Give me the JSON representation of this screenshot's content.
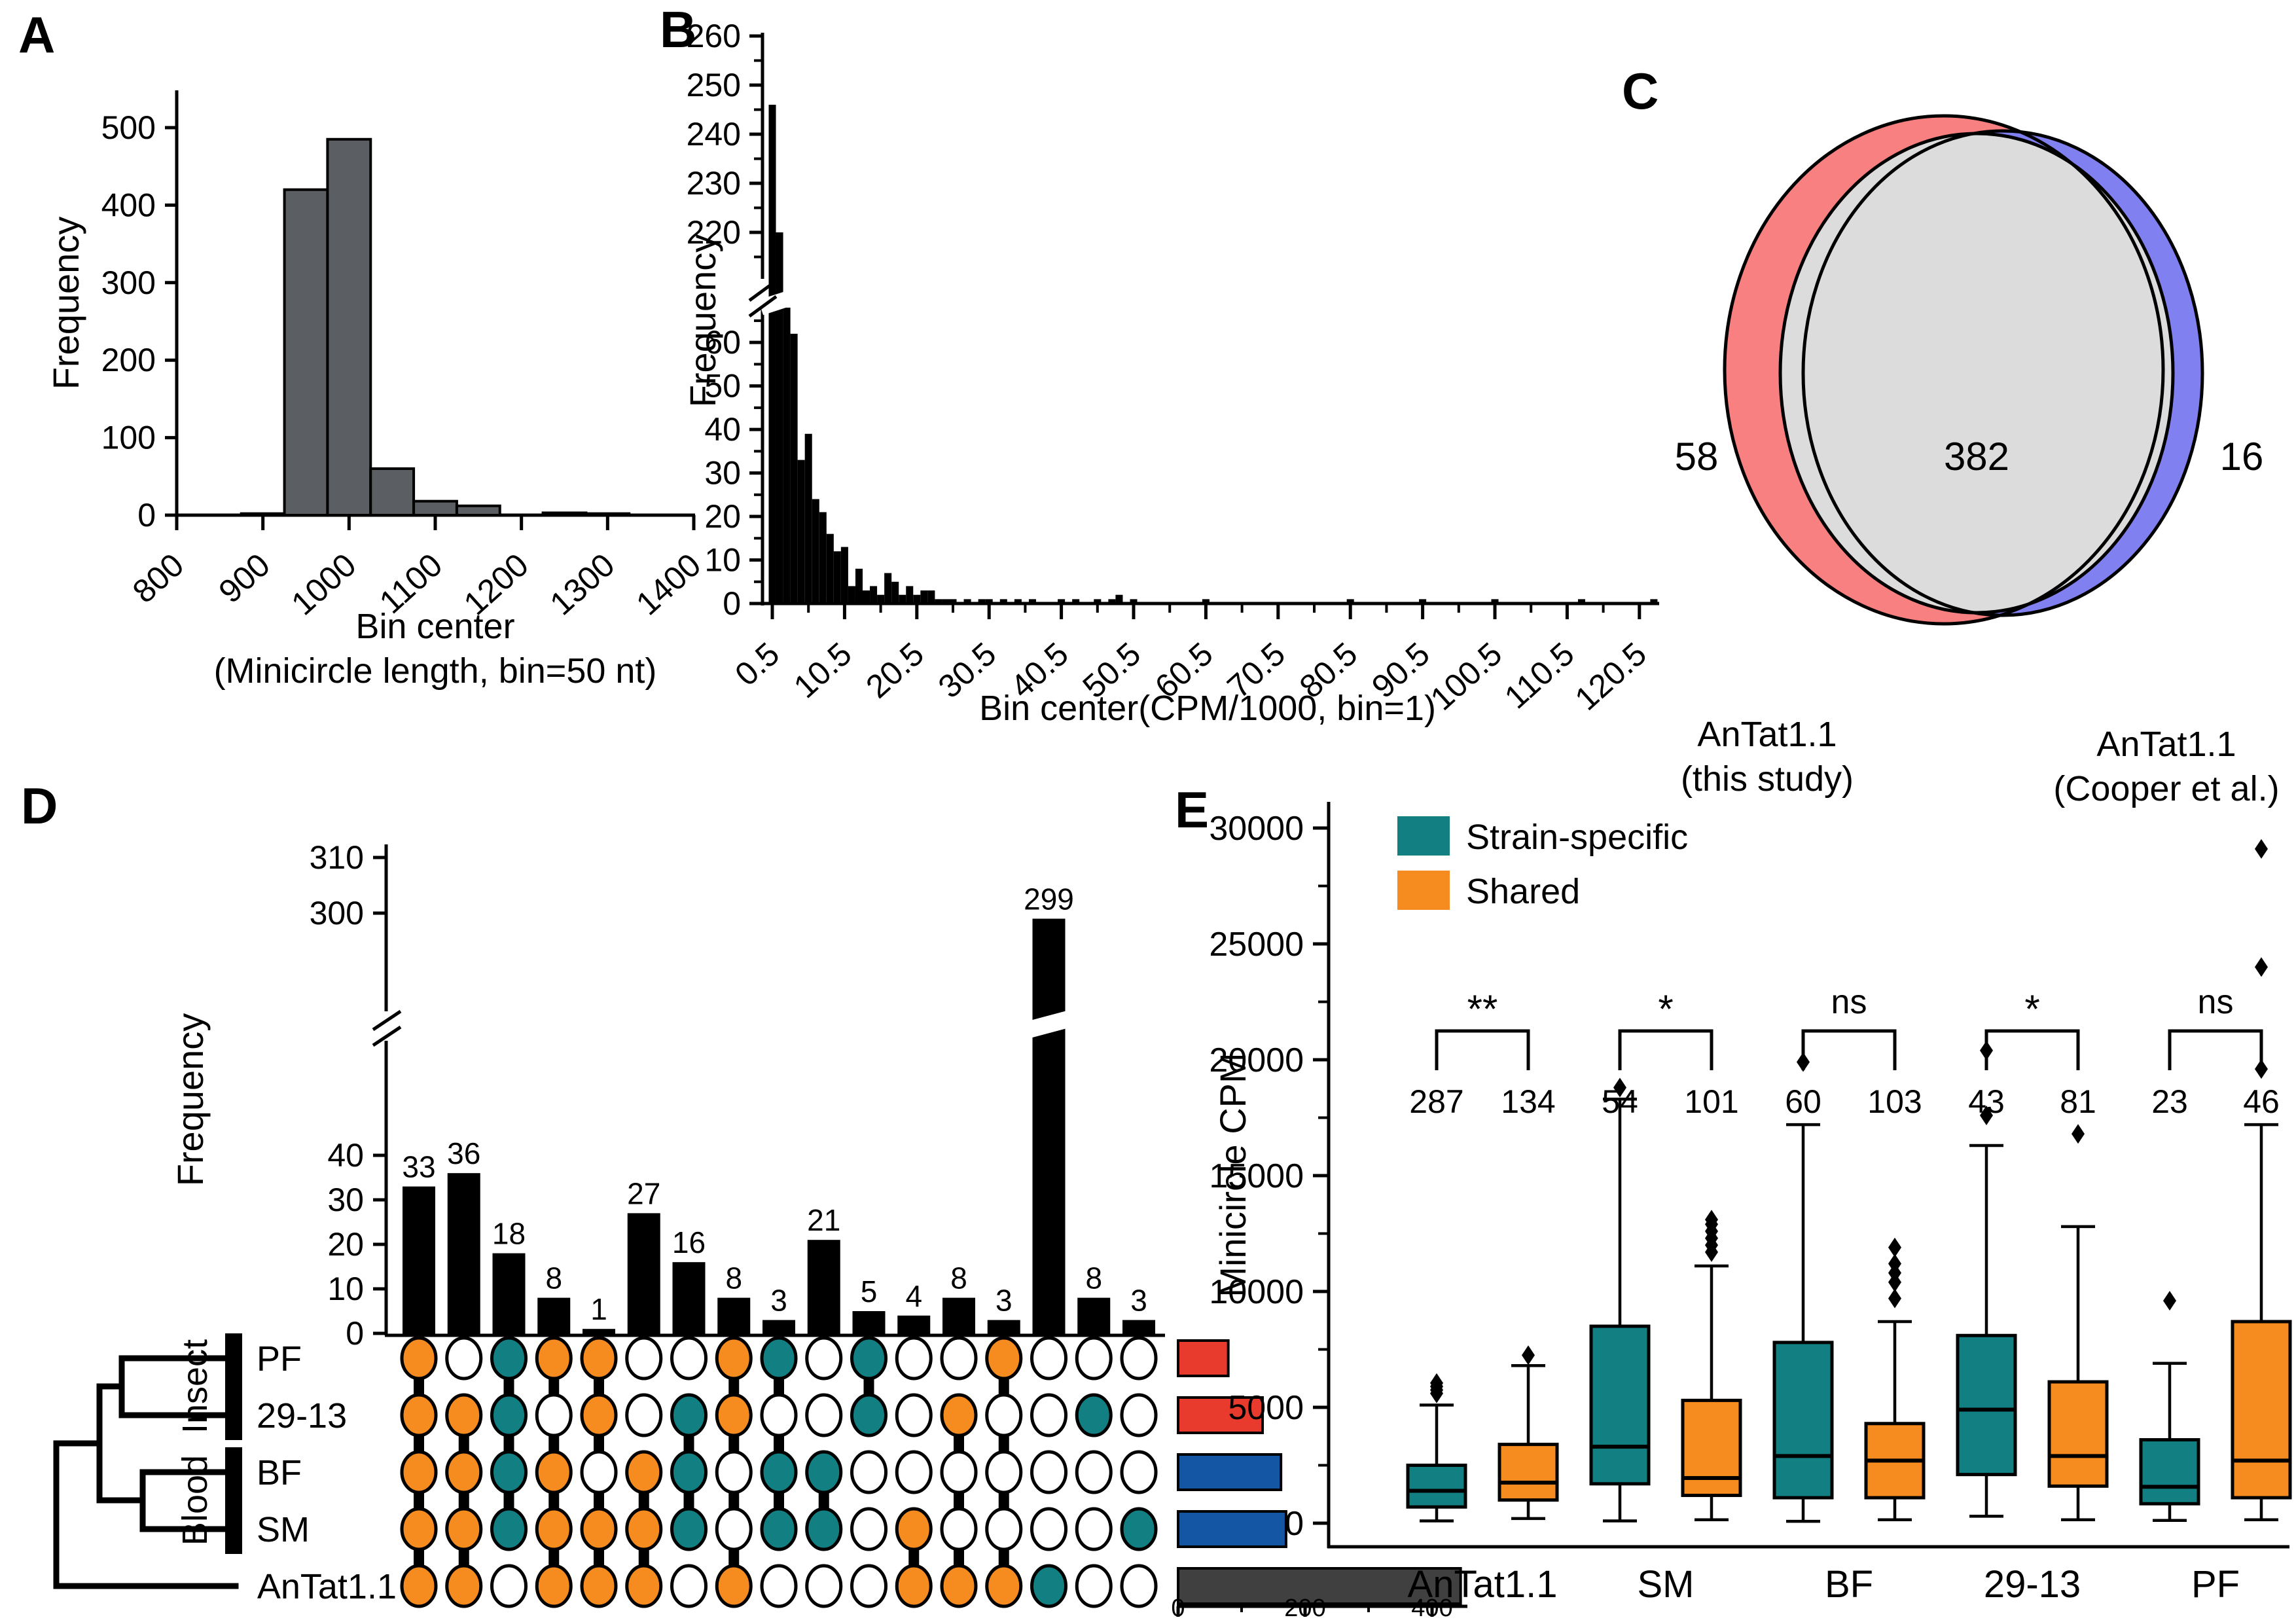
{
  "labels": {
    "a": "A",
    "b": "B",
    "c": "C",
    "d": "D",
    "e": "E"
  },
  "colors": {
    "teal": "#128083",
    "orange": "#F68B1F",
    "hist_gray": "#5B5F63",
    "venn_pink": "#F98080",
    "venn_blue": "#8080F0",
    "venn_gray": "#DCDCDC",
    "set_red": "#E93A2E",
    "set_blue": "#1456A4",
    "set_dark": "#404040",
    "black": "#000000"
  },
  "chart_data": [
    {
      "id": "panel_a",
      "type": "bar",
      "title": "",
      "ylabel": "Frequency",
      "xlabel_line1": "Bin center",
      "xlabel_line2": "(Minicircle length, bin=50 nt)",
      "xticks": [
        800,
        900,
        1000,
        1100,
        1200,
        1300,
        1400
      ],
      "yticks": [
        0,
        100,
        200,
        300,
        400,
        500
      ],
      "ylim": [
        0,
        550
      ],
      "bin_width": 50,
      "bin_centers": [
        900,
        950,
        1000,
        1050,
        1100,
        1150,
        1250,
        1300
      ],
      "values": [
        2,
        420,
        485,
        60,
        18,
        12,
        3,
        2
      ]
    },
    {
      "id": "panel_b",
      "type": "bar",
      "title": "",
      "ylabel": "Frequency",
      "xlabel": "Bin center(CPM/1000, bin=1)",
      "xticks": [
        0.5,
        10.5,
        20.5,
        30.5,
        40.5,
        50.5,
        60.5,
        70.5,
        80.5,
        90.5,
        100.5,
        110.5,
        120.5
      ],
      "y_break": {
        "lower_max": 68,
        "upper_min": 215,
        "upper_max": 262
      },
      "y_lower_ticks": [
        0,
        10,
        20,
        30,
        40,
        50,
        60
      ],
      "y_upper_ticks": [
        220,
        230,
        240,
        250,
        260
      ],
      "bin_start_center": 0.5,
      "bin_width": 1,
      "values": [
        246,
        220,
        68,
        62,
        33,
        39,
        24,
        21,
        16,
        12,
        13,
        4,
        8,
        3,
        4,
        2,
        7,
        5,
        2,
        4,
        2,
        3,
        3,
        1,
        1,
        1,
        0,
        1,
        0,
        1,
        1,
        0,
        1,
        0,
        1,
        0,
        1,
        0,
        0,
        0,
        1,
        0,
        1,
        0,
        0,
        1,
        0,
        1,
        2,
        0,
        1,
        0,
        0,
        0,
        0,
        0,
        0,
        0,
        0,
        0,
        1,
        0,
        0,
        0,
        0,
        0,
        0,
        0,
        0,
        0,
        0,
        0,
        0,
        0,
        0,
        0,
        0,
        0,
        0,
        0,
        1,
        0,
        0,
        0,
        0,
        0,
        0,
        0,
        0,
        0,
        1,
        0,
        0,
        0,
        0,
        0,
        0,
        0,
        0,
        0,
        1,
        0,
        0,
        0,
        0,
        0,
        0,
        0,
        0,
        0,
        0,
        0,
        1,
        0,
        0,
        0,
        0,
        0,
        0,
        0,
        0,
        0,
        1
      ]
    },
    {
      "id": "panel_c",
      "type": "venn",
      "left_only": 58,
      "intersection": 382,
      "right_only": 16,
      "left_label_line1": "AnTat1.1",
      "left_label_line2": "(this study)",
      "right_label_line1": "AnTat1.1",
      "right_label_line2": "(Cooper et al.)"
    },
    {
      "id": "panel_d",
      "type": "upset",
      "ylabel": "Frequency",
      "y_lower_ticks": [
        0,
        10,
        20,
        30,
        40
      ],
      "y_upper_ticks": [
        300,
        310
      ],
      "bar_values": [
        33,
        36,
        18,
        8,
        1,
        27,
        16,
        8,
        3,
        21,
        5,
        4,
        8,
        3,
        299,
        8,
        3
      ],
      "matrix_rows": [
        "PF",
        "29-13",
        "BF",
        "SM",
        "AnTat1.1"
      ],
      "row_groups": [
        {
          "label": "Insect",
          "rows": [
            0,
            1
          ]
        },
        {
          "label": "Blood",
          "rows": [
            2,
            3
          ]
        }
      ],
      "membership_legend": {
        "0": "absent",
        "1": "shared-orange",
        "2": "strain-specific-teal"
      },
      "membership": [
        [
          1,
          1,
          1,
          1,
          1
        ],
        [
          0,
          1,
          1,
          1,
          1
        ],
        [
          2,
          2,
          2,
          2,
          0
        ],
        [
          1,
          0,
          1,
          1,
          1
        ],
        [
          1,
          1,
          0,
          1,
          1
        ],
        [
          0,
          0,
          1,
          1,
          1
        ],
        [
          0,
          2,
          2,
          2,
          0
        ],
        [
          1,
          1,
          0,
          0,
          1
        ],
        [
          2,
          0,
          2,
          2,
          0
        ],
        [
          0,
          0,
          2,
          2,
          0
        ],
        [
          2,
          2,
          0,
          0,
          0
        ],
        [
          0,
          0,
          0,
          1,
          1
        ],
        [
          0,
          1,
          0,
          0,
          1
        ],
        [
          1,
          0,
          0,
          0,
          1
        ],
        [
          0,
          0,
          0,
          0,
          2
        ],
        [
          0,
          2,
          0,
          0,
          0
        ],
        [
          0,
          0,
          0,
          2,
          0
        ]
      ],
      "set_sizes": [
        79,
        133,
        162,
        170,
        445
      ],
      "set_size_colors": [
        "set_red",
        "set_red",
        "set_blue",
        "set_blue",
        "set_dark"
      ],
      "size_axis_ticks": [
        0,
        200,
        400
      ],
      "size_axis_minor_ticks": [
        100,
        300
      ]
    },
    {
      "id": "panel_e",
      "type": "box",
      "ylabel": "Minicircle CPM",
      "legend": [
        {
          "label": "Strain-specific",
          "color": "teal"
        },
        {
          "label": "Shared",
          "color": "orange"
        }
      ],
      "groups": [
        "AnTat1.1",
        "SM",
        "BF",
        "29-13",
        "PF"
      ],
      "significance": [
        "**",
        "*",
        "ns",
        "*",
        "ns"
      ],
      "n_values": [
        [
          287,
          134
        ],
        [
          54,
          101
        ],
        [
          60,
          103
        ],
        [
          43,
          81
        ],
        [
          23,
          46
        ]
      ],
      "yticks": [
        0,
        5000,
        10000,
        15000,
        20000,
        25000,
        30000
      ],
      "ylim": [
        0,
        31000
      ],
      "series": [
        {
          "name": "Strain-specific",
          "color": "teal",
          "boxes": [
            {
              "lo": 100,
              "q1": 700,
              "med": 1400,
              "q3": 2500,
              "hi": 5100,
              "outliers": [
                5600,
                5750,
                5900,
                6050
              ]
            },
            {
              "lo": 100,
              "q1": 1700,
              "med": 3300,
              "q3": 8500,
              "hi": 18300,
              "outliers": [
                18800
              ]
            },
            {
              "lo": 80,
              "q1": 1100,
              "med": 2900,
              "q3": 7800,
              "hi": 17200,
              "outliers": [
                19900
              ]
            },
            {
              "lo": 300,
              "q1": 2100,
              "med": 4900,
              "q3": 8100,
              "hi": 16300,
              "outliers": [
                17600,
                20400
              ]
            },
            {
              "lo": 120,
              "q1": 840,
              "med": 1570,
              "q3": 3600,
              "hi": 6900,
              "outliers": [
                9600
              ]
            }
          ]
        },
        {
          "name": "Shared",
          "color": "orange",
          "boxes": [
            {
              "lo": 200,
              "q1": 1000,
              "med": 1750,
              "q3": 3400,
              "hi": 6800,
              "outliers": [
                7250
              ]
            },
            {
              "lo": 150,
              "q1": 1200,
              "med": 1950,
              "q3": 5300,
              "hi": 11100,
              "outliers": [
                11700,
                12000,
                12300,
                12600,
                12900,
                13100
              ]
            },
            {
              "lo": 150,
              "q1": 1100,
              "med": 2700,
              "q3": 4300,
              "hi": 8700,
              "outliers": [
                9700,
                10400,
                10800,
                11200,
                11900
              ]
            },
            {
              "lo": 150,
              "q1": 1600,
              "med": 2900,
              "q3": 6100,
              "hi": 12800,
              "outliers": [
                16800
              ]
            },
            {
              "lo": 150,
              "q1": 1100,
              "med": 2700,
              "q3": 8700,
              "hi": 17200,
              "outliers": [
                19600,
                24000,
                29100
              ]
            }
          ]
        }
      ]
    }
  ]
}
